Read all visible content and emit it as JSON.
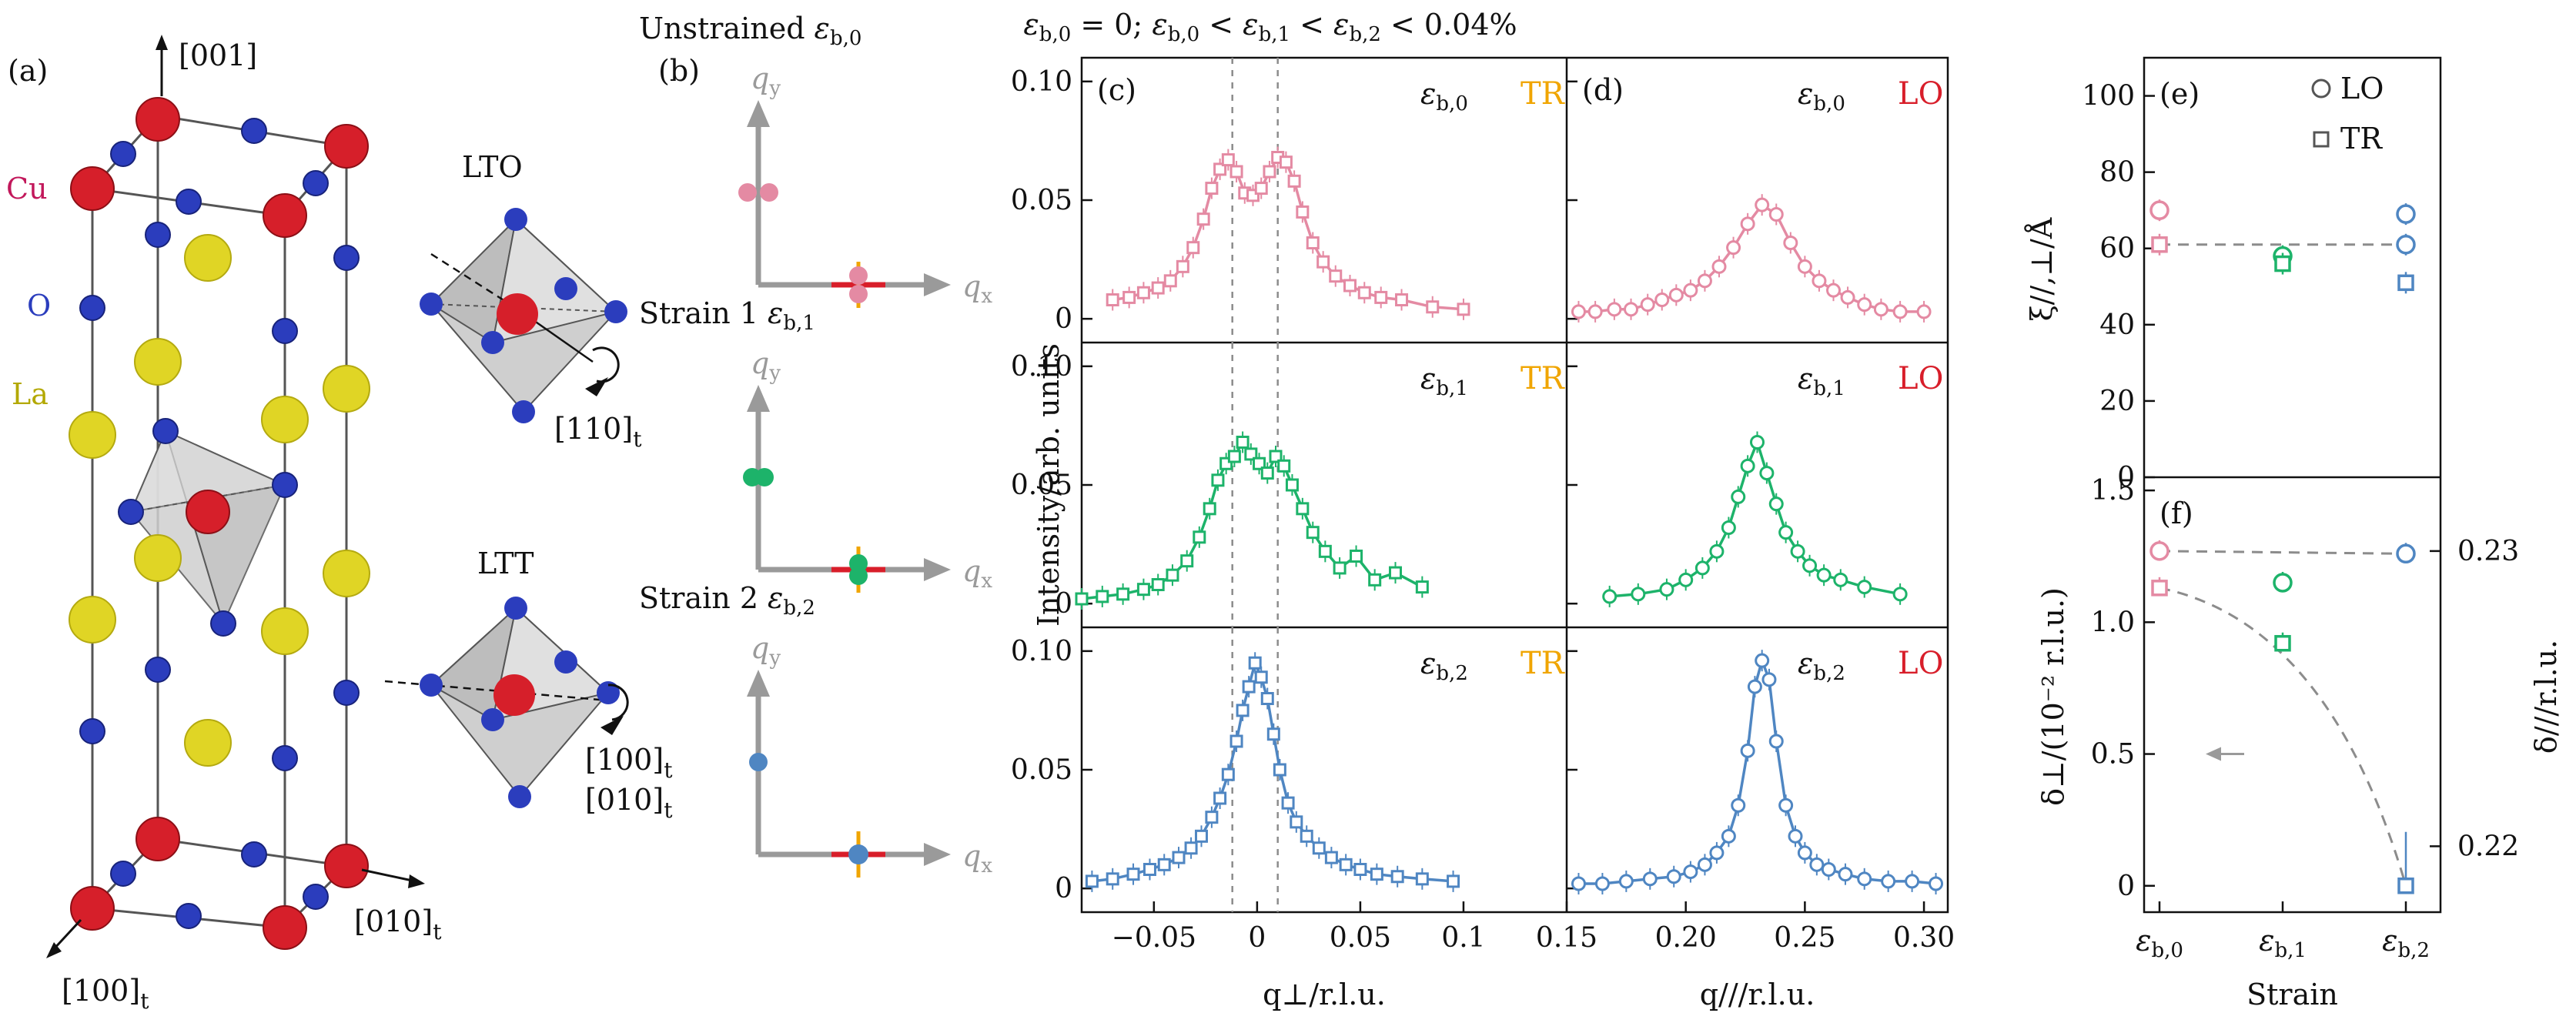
{
  "colors": {
    "pink": "#e48aa3",
    "green": "#1db36a",
    "blue": "#4f86c2",
    "orange": "#f0a500",
    "red": "#d81e2a",
    "cu": "#d61f2a",
    "o": "#2b3dbd",
    "la": "#e0d525",
    "gray": "#9a9a9a",
    "dashed": "#8c8c8c"
  },
  "panel_a": {
    "label": "(a)",
    "dir_001": "[001]",
    "atom_cu": "Cu",
    "atom_o": "O",
    "atom_la": "La",
    "lto": "LTO",
    "ltt": "LTT",
    "dir_110t": "[110]",
    "dir_100t_r": "[100]",
    "dir_010t_r": "[010]",
    "dir_010t": "[010]",
    "dir_100t": "[100]",
    "sub_t": "t"
  },
  "panel_b": {
    "label": "(b)",
    "rows": [
      {
        "title": "Unstrained",
        "eps": "ε",
        "sub": "b,0"
      },
      {
        "title": "Strain 1",
        "eps": "ε",
        "sub": "b,1"
      },
      {
        "title": "Strain 2",
        "eps": "ε",
        "sub": "b,2"
      }
    ],
    "qx": "q",
    "qx_sub": "x",
    "qy": "q",
    "qy_sub": "y"
  },
  "header": "ε_{b,0} = 0; ε_{b,0} < ε_{b,1} < ε_{b,2} < 0.04%",
  "chart_data": [
    {
      "type": "scatter",
      "panel": "(c)",
      "xlabel": "q⊥/r.l.u.",
      "ylabel": "Intensity/arb. units",
      "xlim": [
        -0.085,
        0.15
      ],
      "xticks": [
        -0.05,
        0,
        0.05,
        0.1
      ],
      "xtick_labels": [
        "−0.05",
        "0",
        "0.05",
        "0.1"
      ],
      "ylim": [
        -0.01,
        0.11
      ],
      "yticks": [
        0,
        0.05,
        0.1
      ],
      "ytick_labels": [
        "0",
        "0.05",
        "0.10"
      ],
      "tag": "TR",
      "series": [
        {
          "eps": "ε",
          "sub": "b,0",
          "color": "pink",
          "x": [
            -0.07,
            -0.062,
            -0.055,
            -0.048,
            -0.042,
            -0.036,
            -0.031,
            -0.026,
            -0.022,
            -0.018,
            -0.014,
            -0.01,
            -0.006,
            -0.002,
            0.002,
            0.006,
            0.01,
            0.014,
            0.018,
            0.022,
            0.027,
            0.032,
            0.038,
            0.045,
            0.052,
            0.06,
            0.07,
            0.085,
            0.1
          ],
          "y": [
            0.008,
            0.009,
            0.011,
            0.013,
            0.016,
            0.022,
            0.03,
            0.042,
            0.055,
            0.063,
            0.067,
            0.062,
            0.053,
            0.052,
            0.055,
            0.062,
            0.068,
            0.066,
            0.058,
            0.045,
            0.032,
            0.024,
            0.018,
            0.014,
            0.011,
            0.009,
            0.008,
            0.005,
            0.004
          ]
        },
        {
          "eps": "ε",
          "sub": "b,1",
          "color": "green",
          "x": [
            -0.085,
            -0.075,
            -0.065,
            -0.055,
            -0.048,
            -0.041,
            -0.034,
            -0.028,
            -0.023,
            -0.019,
            -0.015,
            -0.011,
            -0.007,
            -0.003,
            0.001,
            0.005,
            0.009,
            0.013,
            0.017,
            0.022,
            0.027,
            0.033,
            0.04,
            0.048,
            0.057,
            0.067,
            0.08
          ],
          "y": [
            0.002,
            0.003,
            0.004,
            0.006,
            0.008,
            0.012,
            0.018,
            0.028,
            0.04,
            0.052,
            0.059,
            0.062,
            0.068,
            0.063,
            0.059,
            0.055,
            0.062,
            0.058,
            0.05,
            0.04,
            0.03,
            0.022,
            0.015,
            0.02,
            0.01,
            0.013,
            0.007
          ]
        },
        {
          "eps": "ε",
          "sub": "b,2",
          "color": "blue",
          "x": [
            -0.08,
            -0.07,
            -0.06,
            -0.052,
            -0.045,
            -0.038,
            -0.032,
            -0.027,
            -0.022,
            -0.018,
            -0.014,
            -0.01,
            -0.007,
            -0.004,
            -0.001,
            0.002,
            0.005,
            0.008,
            0.011,
            0.015,
            0.019,
            0.024,
            0.03,
            0.036,
            0.043,
            0.05,
            0.058,
            0.068,
            0.08,
            0.095
          ],
          "y": [
            0.003,
            0.004,
            0.006,
            0.008,
            0.01,
            0.013,
            0.017,
            0.022,
            0.03,
            0.038,
            0.048,
            0.062,
            0.075,
            0.085,
            0.095,
            0.089,
            0.08,
            0.065,
            0.05,
            0.036,
            0.028,
            0.022,
            0.017,
            0.013,
            0.01,
            0.008,
            0.006,
            0.005,
            0.004,
            0.003
          ]
        }
      ]
    },
    {
      "type": "scatter",
      "panel": "(d)",
      "xlabel": "q///r.l.u.",
      "xlim": [
        0.15,
        0.31
      ],
      "xticks": [
        0.15,
        0.2,
        0.25,
        0.3
      ],
      "xtick_labels": [
        "0.15",
        "0.20",
        "0.25",
        "0.30"
      ],
      "ylim": [
        -0.01,
        0.11
      ],
      "tag": "LO",
      "series": [
        {
          "eps": "ε",
          "sub": "b,0",
          "color": "pink",
          "x": [
            0.155,
            0.162,
            0.17,
            0.177,
            0.184,
            0.19,
            0.196,
            0.202,
            0.208,
            0.214,
            0.22,
            0.226,
            0.232,
            0.238,
            0.244,
            0.25,
            0.256,
            0.262,
            0.268,
            0.275,
            0.282,
            0.29,
            0.3
          ],
          "y": [
            0.003,
            0.003,
            0.004,
            0.004,
            0.006,
            0.008,
            0.01,
            0.012,
            0.016,
            0.022,
            0.03,
            0.04,
            0.048,
            0.044,
            0.032,
            0.022,
            0.016,
            0.012,
            0.009,
            0.006,
            0.004,
            0.003,
            0.003
          ]
        },
        {
          "eps": "ε",
          "sub": "b,1",
          "color": "green",
          "x": [
            0.168,
            0.18,
            0.192,
            0.2,
            0.207,
            0.213,
            0.218,
            0.222,
            0.226,
            0.23,
            0.234,
            0.238,
            0.242,
            0.247,
            0.252,
            0.258,
            0.265,
            0.275,
            0.29
          ],
          "y": [
            0.003,
            0.004,
            0.006,
            0.01,
            0.015,
            0.022,
            0.032,
            0.045,
            0.058,
            0.068,
            0.055,
            0.042,
            0.03,
            0.022,
            0.016,
            0.012,
            0.01,
            0.007,
            0.004
          ]
        },
        {
          "eps": "ε",
          "sub": "b,2",
          "color": "blue",
          "x": [
            0.155,
            0.165,
            0.175,
            0.185,
            0.195,
            0.202,
            0.208,
            0.213,
            0.218,
            0.222,
            0.226,
            0.229,
            0.232,
            0.235,
            0.238,
            0.242,
            0.246,
            0.25,
            0.255,
            0.26,
            0.267,
            0.275,
            0.285,
            0.295,
            0.305
          ],
          "y": [
            0.002,
            0.002,
            0.003,
            0.004,
            0.005,
            0.007,
            0.01,
            0.015,
            0.022,
            0.035,
            0.058,
            0.085,
            0.096,
            0.088,
            0.062,
            0.035,
            0.022,
            0.015,
            0.01,
            0.008,
            0.006,
            0.004,
            0.003,
            0.003,
            0.002
          ]
        }
      ]
    },
    {
      "type": "scatter",
      "panel": "(e)",
      "ylabel": "ξ//,⊥/Å",
      "ylim": [
        0,
        110
      ],
      "yticks": [
        0,
        20,
        40,
        60,
        80,
        100
      ],
      "categories": [
        "ε_{b,0}",
        "ε_{b,1}",
        "ε_{b,2}"
      ],
      "legend": [
        "LO",
        "TR"
      ],
      "series": [
        {
          "name": "LO",
          "marker": "circle",
          "points": [
            {
              "cat": 0,
              "y": 70,
              "color": "pink"
            },
            {
              "cat": 1,
              "y": 58,
              "color": "green"
            },
            {
              "cat": 2,
              "y": 69,
              "color": "blue"
            },
            {
              "cat": 2,
              "y": 61,
              "color": "blue"
            }
          ]
        },
        {
          "name": "TR",
          "marker": "square",
          "points": [
            {
              "cat": 0,
              "y": 61,
              "color": "pink"
            },
            {
              "cat": 1,
              "y": 56,
              "color": "green"
            },
            {
              "cat": 2,
              "y": 51,
              "color": "blue"
            }
          ]
        }
      ],
      "hline": 61
    },
    {
      "type": "scatter",
      "panel": "(f)",
      "xlabel": "Strain",
      "ylabel": "δ⊥/(10⁻² r.l.u.)",
      "ylabel_right": "δ///r.l.u.",
      "ylim": [
        -0.1,
        1.55
      ],
      "yticks": [
        0,
        0.5,
        1.0,
        1.5
      ],
      "yticks_right": [
        "0.23",
        "0.22"
      ],
      "categories": [
        "ε_{b,0}",
        "ε_{b,1}",
        "ε_{b,2}"
      ],
      "series": [
        {
          "name": "δ//",
          "marker": "circle",
          "points": [
            {
              "cat": 0,
              "y": 1.27,
              "color": "pink"
            },
            {
              "cat": 1,
              "y": 1.15,
              "color": "green"
            },
            {
              "cat": 2,
              "y": 1.26,
              "color": "blue"
            }
          ]
        },
        {
          "name": "δ⊥",
          "marker": "square",
          "points": [
            {
              "cat": 0,
              "y": 1.13,
              "color": "pink"
            },
            {
              "cat": 1,
              "y": 0.92,
              "color": "green"
            },
            {
              "cat": 2,
              "y": 0.0,
              "color": "blue"
            }
          ]
        }
      ]
    }
  ]
}
